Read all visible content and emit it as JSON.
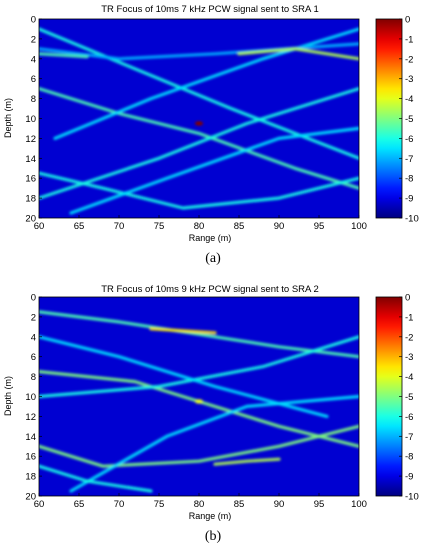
{
  "figure": {
    "panels": [
      {
        "caption": "(a)"
      },
      {
        "caption": "(b)"
      }
    ]
  },
  "chart_data": [
    {
      "type": "heatmap",
      "title": "TR Focus of 10ms 7 kHz PCW signal sent to SRA 1",
      "xlabel": "Range (m)",
      "ylabel": "Depth (m)",
      "xlim": [
        60,
        100
      ],
      "ylim": [
        0,
        20
      ],
      "y_axis_inverted": true,
      "x_ticks": [
        60,
        65,
        70,
        75,
        80,
        85,
        90,
        95,
        100
      ],
      "y_ticks": [
        0,
        2,
        4,
        6,
        8,
        10,
        12,
        14,
        16,
        18,
        20
      ],
      "colorbar": {
        "min": -10,
        "max": 0,
        "ticks": [
          0,
          -1,
          -2,
          -3,
          -4,
          -5,
          -6,
          -7,
          -8,
          -9,
          -10
        ],
        "colormap": "jet"
      },
      "background_value": -9.2,
      "focus": {
        "x": 80,
        "y": 10.5,
        "value": 0
      },
      "features": [
        {
          "x": [
            60,
            72,
            84,
            100
          ],
          "y": [
            1,
            5,
            9,
            14
          ],
          "value": -6
        },
        {
          "x": [
            60,
            70,
            80,
            92,
            100
          ],
          "y": [
            7,
            9.5,
            11.5,
            15,
            17
          ],
          "value": -5.5
        },
        {
          "x": [
            60,
            75,
            86,
            100
          ],
          "y": [
            18,
            14,
            10.5,
            7
          ],
          "value": -6
        },
        {
          "x": [
            62,
            74,
            88,
            100
          ],
          "y": [
            12,
            8,
            4,
            1
          ],
          "value": -6.5
        },
        {
          "x": [
            60,
            68,
            78,
            90,
            100
          ],
          "y": [
            15.5,
            17,
            19,
            18,
            16
          ],
          "value": -6
        },
        {
          "x": [
            60,
            70,
            82,
            100
          ],
          "y": [
            3,
            4,
            3.5,
            2.5
          ],
          "value": -7
        },
        {
          "x": [
            64,
            76,
            90,
            100
          ],
          "y": [
            19.5,
            16,
            12,
            11
          ],
          "value": -6.5
        },
        {
          "x": [
            85,
            92,
            100
          ],
          "y": [
            3.5,
            3,
            4
          ],
          "value": -4.5
        },
        {
          "x": [
            60,
            66
          ],
          "y": [
            3.5,
            3.8
          ],
          "value": -5.5
        }
      ]
    },
    {
      "type": "heatmap",
      "title": "TR Focus of 10ms 9 kHz PCW signal sent to SRA 2",
      "xlabel": "Range (m)",
      "ylabel": "Depth (m)",
      "xlim": [
        60,
        100
      ],
      "ylim": [
        0,
        20
      ],
      "y_axis_inverted": true,
      "x_ticks": [
        60,
        65,
        70,
        75,
        80,
        85,
        90,
        95,
        100
      ],
      "y_ticks": [
        0,
        2,
        4,
        6,
        8,
        10,
        12,
        14,
        16,
        18,
        20
      ],
      "colorbar": {
        "min": -10,
        "max": 0,
        "ticks": [
          0,
          -1,
          -2,
          -3,
          -4,
          -5,
          -6,
          -7,
          -8,
          -9,
          -10
        ],
        "colormap": "jet"
      },
      "background_value": -9.2,
      "focus": {
        "x": 80,
        "y": 10.5,
        "value": -4
      },
      "features": [
        {
          "x": [
            60,
            70,
            78,
            90,
            100
          ],
          "y": [
            1.5,
            2.5,
            3.5,
            5,
            6
          ],
          "value": -5.5
        },
        {
          "x": [
            60,
            72,
            80,
            90,
            100
          ],
          "y": [
            7.5,
            8.5,
            10.5,
            13,
            15
          ],
          "value": -5
        },
        {
          "x": [
            60,
            68,
            80,
            90,
            100
          ],
          "y": [
            15,
            17,
            16.5,
            15,
            13
          ],
          "value": -5
        },
        {
          "x": [
            60,
            75,
            88,
            100
          ],
          "y": [
            10,
            9,
            7,
            4
          ],
          "value": -6
        },
        {
          "x": [
            64,
            76,
            86,
            100
          ],
          "y": [
            19.5,
            14,
            11,
            10
          ],
          "value": -6.5
        },
        {
          "x": [
            60,
            70,
            82,
            96
          ],
          "y": [
            4,
            6,
            9,
            12
          ],
          "value": -6.5
        },
        {
          "x": [
            60,
            66,
            74
          ],
          "y": [
            17,
            18.5,
            19.5
          ],
          "value": -6
        },
        {
          "x": [
            74,
            78,
            82
          ],
          "y": [
            3.2,
            3.4,
            3.6
          ],
          "value": -3.5
        },
        {
          "x": [
            82,
            86,
            90
          ],
          "y": [
            16.8,
            16.5,
            16.3
          ],
          "value": -4.5
        }
      ]
    }
  ]
}
